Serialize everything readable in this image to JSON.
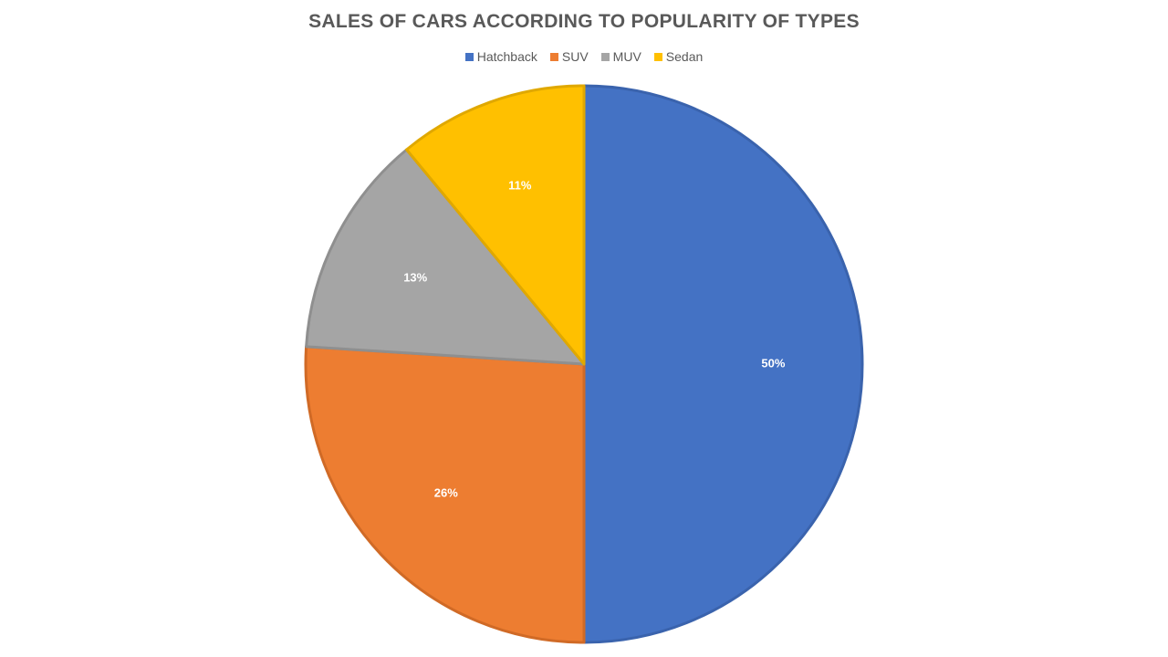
{
  "chart_data": {
    "type": "pie",
    "title": "SALES OF CARS ACCORDING TO POPULARITY OF TYPES",
    "legend_position": "top",
    "categories": [
      "Hatchback",
      "SUV",
      "MUV",
      "Sedan"
    ],
    "values": [
      50,
      26,
      13,
      11
    ],
    "data_labels": [
      "50%",
      "26%",
      "13%",
      "11%"
    ],
    "colors": [
      "#4472C4",
      "#ED7D31",
      "#A5A5A5",
      "#FFC000"
    ],
    "border_colors": [
      "#3A63AD",
      "#D06A26",
      "#8F8F8F",
      "#E0A800"
    ]
  }
}
